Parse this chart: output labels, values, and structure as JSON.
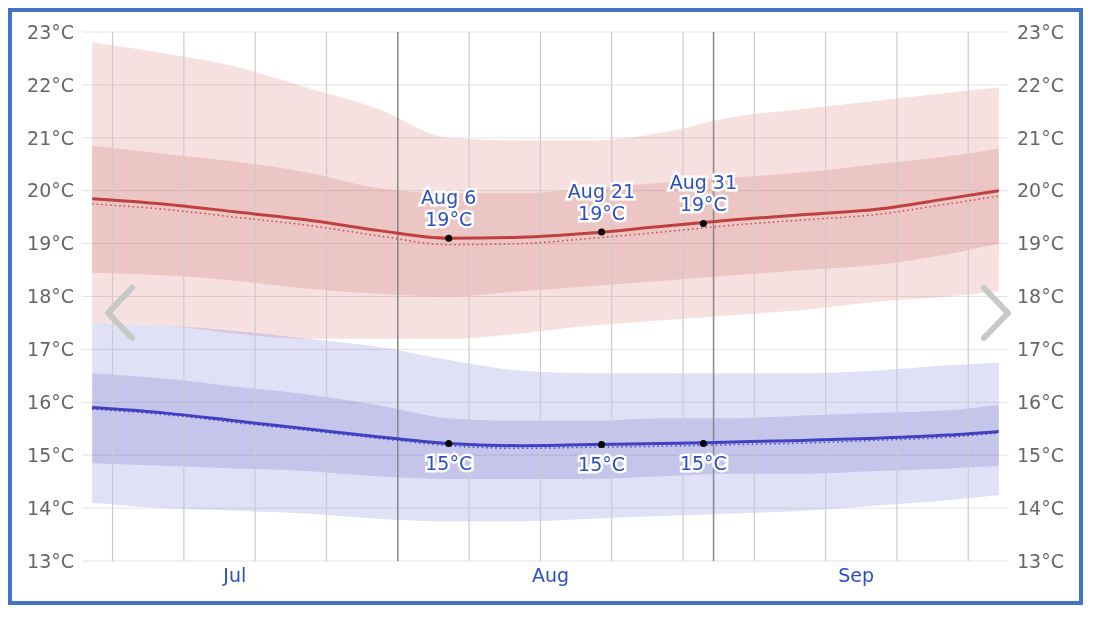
{
  "chart_data": {
    "type": "line",
    "x": [
      "--07-02",
      "--07-09",
      "--07-16",
      "--07-23",
      "--07-30",
      "--08-06",
      "--08-13",
      "--08-20",
      "--08-27",
      "--09-03",
      "--09-10",
      "--09-17",
      "--09-24",
      "--09-29"
    ],
    "series": [
      {
        "color": "#c94a4a",
        "line_style": "dotted",
        "values": [
          19.75,
          19.65,
          19.5,
          19.35,
          19.15,
          18.98,
          19.0,
          19.1,
          19.22,
          19.35,
          19.45,
          19.55,
          19.75,
          19.9
        ],
        "lower": [
          17.5,
          17.45,
          17.3,
          17.2,
          17.2,
          17.2,
          17.3,
          17.45,
          17.55,
          17.65,
          17.75,
          17.9,
          18.0,
          18.1
        ],
        "upper": [
          22.8,
          22.6,
          22.35,
          21.95,
          21.55,
          21.0,
          20.95,
          20.95,
          21.1,
          21.4,
          21.55,
          21.7,
          21.85,
          21.95
        ]
      },
      {
        "color": "#c04040",
        "line_style": "solid",
        "values": [
          19.85,
          19.75,
          19.6,
          19.45,
          19.25,
          19.1,
          19.12,
          19.2,
          19.33,
          19.45,
          19.55,
          19.65,
          19.85,
          20.0
        ],
        "lower": [
          18.45,
          18.4,
          18.3,
          18.15,
          18.05,
          18.0,
          18.1,
          18.2,
          18.3,
          18.4,
          18.5,
          18.6,
          18.8,
          19.0
        ],
        "upper": [
          20.85,
          20.7,
          20.55,
          20.35,
          20.05,
          19.95,
          19.95,
          20.05,
          20.15,
          20.25,
          20.35,
          20.5,
          20.65,
          20.8
        ]
      },
      {
        "color": "#4a4ac8",
        "line_style": "dotted",
        "values": [
          15.87,
          15.77,
          15.62,
          15.47,
          15.32,
          15.18,
          15.13,
          15.15,
          15.17,
          15.2,
          15.23,
          15.28,
          15.34,
          15.42
        ],
        "lower": [
          14.1,
          14.0,
          13.95,
          13.9,
          13.8,
          13.75,
          13.75,
          13.8,
          13.85,
          13.9,
          13.95,
          14.05,
          14.15,
          14.25
        ],
        "upper": [
          17.5,
          17.45,
          17.35,
          17.2,
          17.05,
          16.8,
          16.6,
          16.55,
          16.55,
          16.55,
          16.55,
          16.6,
          16.7,
          16.75
        ]
      },
      {
        "color": "#4040c0",
        "line_style": "solid",
        "values": [
          15.9,
          15.8,
          15.65,
          15.5,
          15.35,
          15.22,
          15.18,
          15.2,
          15.22,
          15.25,
          15.28,
          15.32,
          15.38,
          15.45
        ],
        "lower": [
          14.85,
          14.8,
          14.75,
          14.7,
          14.6,
          14.55,
          14.55,
          14.55,
          14.6,
          14.65,
          14.65,
          14.7,
          14.75,
          14.8
        ],
        "upper": [
          16.55,
          16.45,
          16.3,
          16.15,
          15.95,
          15.7,
          15.65,
          15.65,
          15.7,
          15.7,
          15.75,
          15.8,
          15.85,
          15.95
        ]
      }
    ],
    "xlim": [
      "--07-01",
      "--09-30"
    ],
    "xticks": [
      {
        "value": "--07-04",
        "label": null
      },
      {
        "value": "--07-11",
        "label": null
      },
      {
        "value": "--07-16",
        "label": "Jul"
      },
      {
        "value": "--07-18",
        "label": null
      },
      {
        "value": "--07-25",
        "label": null
      },
      {
        "value": "--08-08",
        "label": null
      },
      {
        "value": "--08-15",
        "label": null
      },
      {
        "value": "--08-16",
        "label": "Aug"
      },
      {
        "value": "--08-22",
        "label": null
      },
      {
        "value": "--08-29",
        "label": null
      },
      {
        "value": "--09-05",
        "label": null
      },
      {
        "value": "--09-12",
        "label": null
      },
      {
        "value": "--09-15",
        "label": "Sep"
      },
      {
        "value": "--09-19",
        "label": null
      },
      {
        "value": "--09-26",
        "label": null
      }
    ],
    "ylim": [
      13,
      23
    ],
    "yticks": [
      {
        "value": 13,
        "label": "13°C"
      },
      {
        "value": 14,
        "label": "14°C"
      },
      {
        "value": 15,
        "label": "15°C"
      },
      {
        "value": 16,
        "label": "16°C"
      },
      {
        "value": 17,
        "label": "17°C"
      },
      {
        "value": 18,
        "label": "18°C"
      },
      {
        "value": 19,
        "label": "19°C"
      },
      {
        "value": 20,
        "label": "20°C"
      },
      {
        "value": 21,
        "label": "21°C"
      },
      {
        "value": 22,
        "label": "22°C"
      },
      {
        "value": 23,
        "label": "23°C"
      }
    ],
    "y2lim": [
      13,
      23
    ],
    "y2ticks": [
      {
        "value": 13,
        "label": "13°C"
      },
      {
        "value": 14,
        "label": "14°C"
      },
      {
        "value": 15,
        "label": "15°C"
      },
      {
        "value": 16,
        "label": "16°C"
      },
      {
        "value": 17,
        "label": "17°C"
      },
      {
        "value": 18,
        "label": "18°C"
      },
      {
        "value": 19,
        "label": "19°C"
      },
      {
        "value": 20,
        "label": "20°C"
      },
      {
        "value": 21,
        "label": "21°C"
      },
      {
        "value": 22,
        "label": "22°C"
      },
      {
        "value": 23,
        "label": "23°C"
      }
    ],
    "ref_lines": [
      {
        "axis": "x",
        "value": "--08-01",
        "color": "#888888"
      },
      {
        "axis": "x",
        "value": "--09-01",
        "color": "#888888"
      }
    ],
    "grid": true,
    "annotations": [
      {
        "text": "Aug 6\n19°C",
        "x": "--08-06",
        "y": 19.1
      },
      {
        "text": "Aug 21\n19°C",
        "x": "--08-21",
        "y": 19.22
      },
      {
        "text": "Aug 31\n19°C",
        "x": "--08-31",
        "y": 19.38
      },
      {
        "text": "15°C",
        "x": "--08-06",
        "y": 15.22
      },
      {
        "text": "15°C",
        "x": "--08-21",
        "y": 15.2
      },
      {
        "text": "15°C",
        "x": "--08-31",
        "y": 15.22
      }
    ]
  }
}
